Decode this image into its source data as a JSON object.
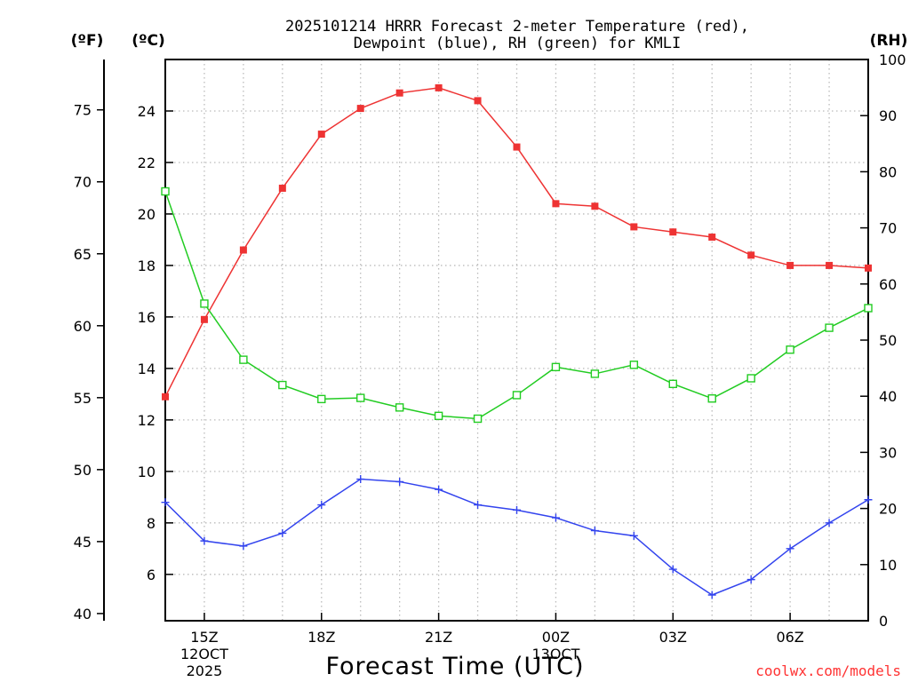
{
  "chart_data": {
    "type": "line",
    "title_line1": "2025101214 HRRR Forecast 2-meter Temperature (red),",
    "title_line2": "Dewpoint (blue), RH (green) for KMLI",
    "xlabel": "Forecast Time (UTC)",
    "credit": "coolwx.com/models",
    "units": {
      "fahrenheit": "(ºF)",
      "celsius": "(ºC)",
      "rh": "(RH)"
    },
    "x_hours": [
      14,
      15,
      16,
      17,
      18,
      19,
      20,
      21,
      22,
      23,
      24,
      25,
      26,
      27,
      28,
      29,
      30,
      31,
      32
    ],
    "x_ticks": [
      {
        "hour": 15,
        "label": "15Z",
        "date": "12OCT",
        "year": "2025"
      },
      {
        "hour": 18,
        "label": "18Z"
      },
      {
        "hour": 21,
        "label": "21Z"
      },
      {
        "hour": 24,
        "label": "00Z",
        "date": "13OCT"
      },
      {
        "hour": 27,
        "label": "03Z"
      },
      {
        "hour": 30,
        "label": "06Z"
      }
    ],
    "celsius_axis": {
      "min": 4.2,
      "max": 26.0,
      "ticks": [
        "6",
        "8",
        "10",
        "12",
        "14",
        "16",
        "18",
        "20",
        "22",
        "24"
      ]
    },
    "fahrenheit_axis": {
      "min": 39.5,
      "max": 78.5,
      "ticks": [
        "40",
        "45",
        "50",
        "55",
        "60",
        "65",
        "70",
        "75"
      ]
    },
    "rh_axis": {
      "min": 0,
      "max": 100,
      "ticks": [
        "0",
        "10",
        "20",
        "30",
        "40",
        "50",
        "60",
        "70",
        "80",
        "90",
        "100"
      ]
    },
    "series": [
      {
        "name": "Temperature",
        "unit": "C",
        "color": "#ee3333",
        "marker": "filled-square",
        "values": [
          12.9,
          15.9,
          18.6,
          21.0,
          23.1,
          24.1,
          24.7,
          24.9,
          24.4,
          22.6,
          20.4,
          20.3,
          19.5,
          19.3,
          19.1,
          18.4,
          18.0,
          18.0,
          17.9
        ]
      },
      {
        "name": "Dewpoint",
        "unit": "C",
        "color": "#3344ee",
        "marker": "plus",
        "values": [
          8.8,
          7.3,
          7.1,
          7.6,
          8.7,
          9.7,
          9.6,
          9.3,
          8.7,
          8.5,
          8.2,
          7.7,
          7.5,
          6.2,
          5.2,
          5.8,
          7.0,
          8.0,
          8.9
        ]
      },
      {
        "name": "RH",
        "unit": "%",
        "color": "#22cc22",
        "marker": "open-square",
        "values": [
          76.5,
          56.5,
          46.5,
          42.0,
          39.5,
          39.7,
          38.0,
          36.5,
          36.0,
          40.2,
          45.2,
          44.0,
          45.6,
          42.2,
          39.6,
          43.2,
          48.3,
          52.2,
          55.7
        ]
      }
    ]
  }
}
